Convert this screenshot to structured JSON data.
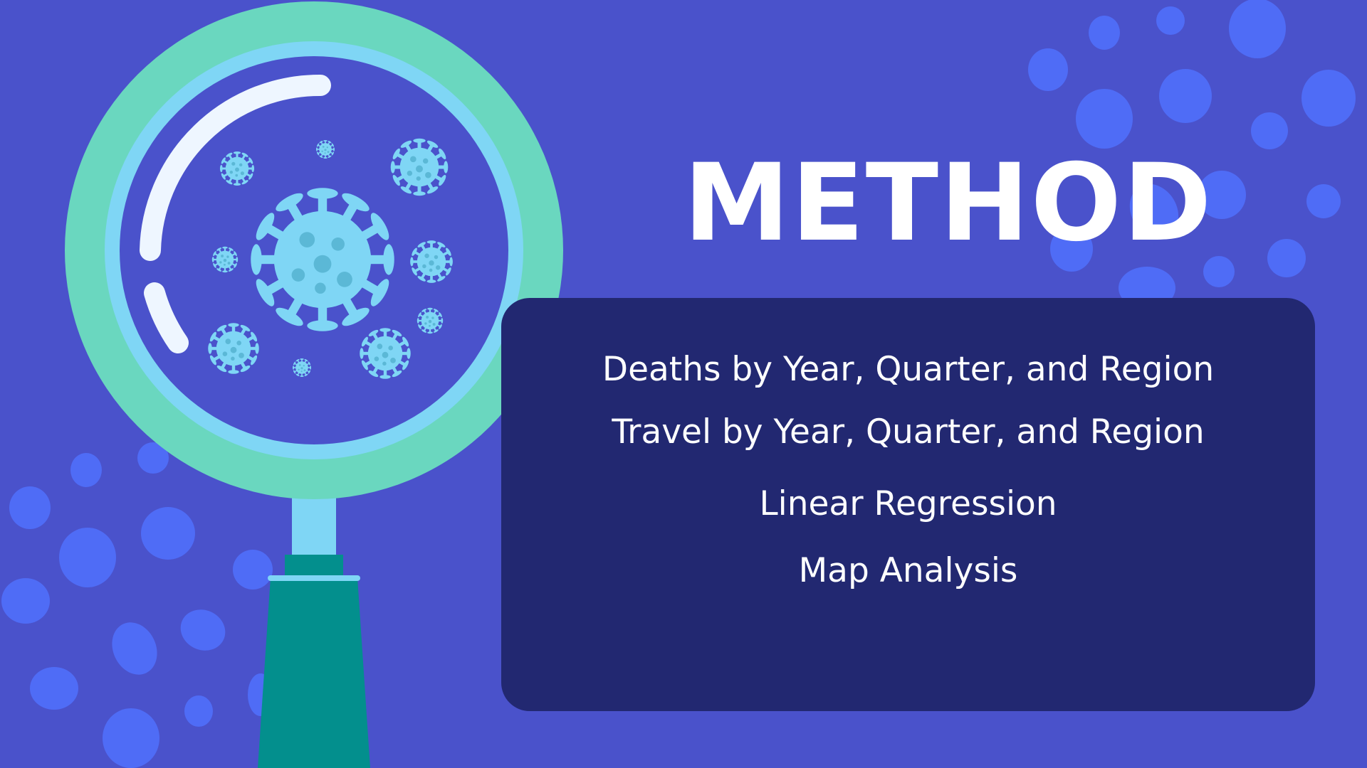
{
  "slide": {
    "title": "METHOD",
    "items": [
      "Deaths by Year, Quarter, and Region",
      "Travel by Year, Quarter, and Region",
      "Linear Regression",
      "Map Analysis"
    ]
  },
  "icons": {
    "illustration": "magnifying-glass-virus-icon",
    "decoration": "bubble-dots"
  },
  "colors": {
    "background": "#4a52cb",
    "panel": "#222871",
    "text": "#ffffff",
    "dots": "#4f6cf6",
    "rim": "#6ad7bf",
    "ring": "#7fd6f5",
    "handle": "#038f8d",
    "virus": "#7fd6f5"
  }
}
